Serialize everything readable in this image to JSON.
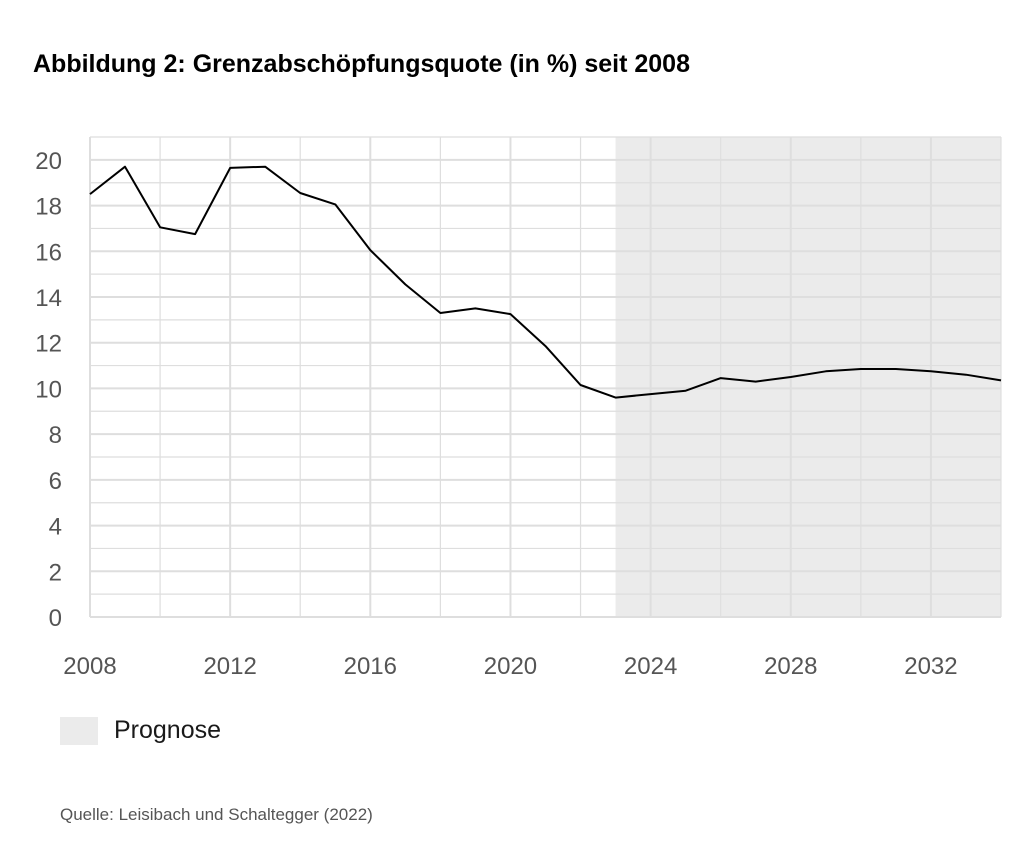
{
  "title": "Abbildung 2: Grenzabschöpfungsquote (in %) seit 2008",
  "legend": {
    "label": "Prognose",
    "color": "#ebebeb"
  },
  "source": "Quelle: Leisibach und Schaltegger (2022)",
  "chart_data": {
    "type": "line",
    "title": "Abbildung 2: Grenzabschöpfungsquote (in %) seit 2008",
    "xlabel": "",
    "ylabel": "",
    "xlim": [
      2008,
      2034
    ],
    "ylim": [
      0,
      21
    ],
    "x_ticks": [
      2008,
      2012,
      2016,
      2020,
      2024,
      2028,
      2032
    ],
    "y_ticks": [
      0,
      2,
      4,
      6,
      8,
      10,
      12,
      14,
      16,
      18,
      20
    ],
    "grid": true,
    "legend_position": "bottom-left",
    "forecast_region": {
      "label": "Prognose",
      "from": 2023,
      "to": 2034,
      "color": "#ebebeb"
    },
    "line_color": "#000000",
    "series": [
      {
        "x": [
          2008,
          2009,
          2010,
          2011,
          2012,
          2013,
          2014,
          2015,
          2016,
          2017,
          2018,
          2019,
          2020,
          2021,
          2022,
          2023,
          2024,
          2025,
          2026,
          2027,
          2028,
          2029,
          2030,
          2031,
          2032,
          2033,
          2034
        ],
        "values": [
          18.5,
          19.7,
          17.05,
          16.75,
          19.65,
          19.7,
          18.55,
          18.05,
          16.05,
          14.55,
          13.3,
          13.5,
          13.25,
          11.85,
          10.15,
          9.6,
          9.75,
          9.9,
          10.45,
          10.3,
          10.5,
          10.75,
          10.85,
          10.85,
          10.75,
          10.6,
          10.35
        ]
      }
    ]
  }
}
